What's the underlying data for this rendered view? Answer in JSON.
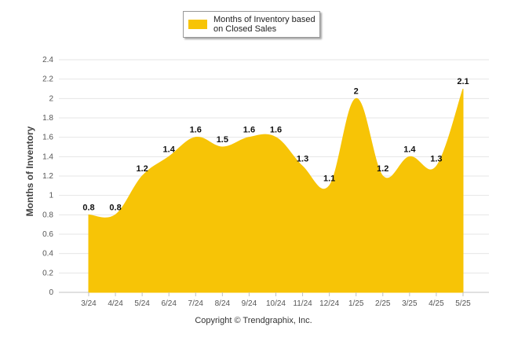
{
  "chart_data": {
    "type": "area",
    "categories": [
      "3/24",
      "4/24",
      "5/24",
      "6/24",
      "7/24",
      "8/24",
      "9/24",
      "10/24",
      "11/24",
      "12/24",
      "1/25",
      "2/25",
      "3/25",
      "4/25",
      "5/25"
    ],
    "series": [
      {
        "name": "Months of Inventory based on Closed Sales",
        "values": [
          0.8,
          0.8,
          1.2,
          1.4,
          1.6,
          1.5,
          1.6,
          1.6,
          1.3,
          1.1,
          2,
          1.2,
          1.4,
          1.3,
          2.1
        ],
        "labels": [
          "0.8",
          "0.8",
          "1.2",
          "1.4",
          "1.6",
          "1.5",
          "1.6",
          "1.6",
          "1.3",
          "1.1",
          "2",
          "1.2",
          "1.4",
          "1.3",
          "2.1"
        ],
        "color": "#F7C406"
      }
    ],
    "ylabel": "Months of Inventory",
    "xlabel": "",
    "ylim": [
      0,
      2.4
    ],
    "yticks": [
      "0",
      "0.2",
      "0.4",
      "0.6",
      "0.8",
      "1",
      "1.2",
      "1.4",
      "1.6",
      "1.8",
      "2",
      "2.2",
      "2.4"
    ],
    "grid": true,
    "legend_position": "top-center"
  },
  "legend": {
    "label_line1": "Months of Inventory based",
    "label_line2": "on Closed Sales"
  },
  "footer": {
    "copyright": "Copyright © Trendgraphix, Inc."
  },
  "colors": {
    "area": "#F7C406",
    "grid": "#E6E6E6",
    "axis_text": "#555555"
  }
}
